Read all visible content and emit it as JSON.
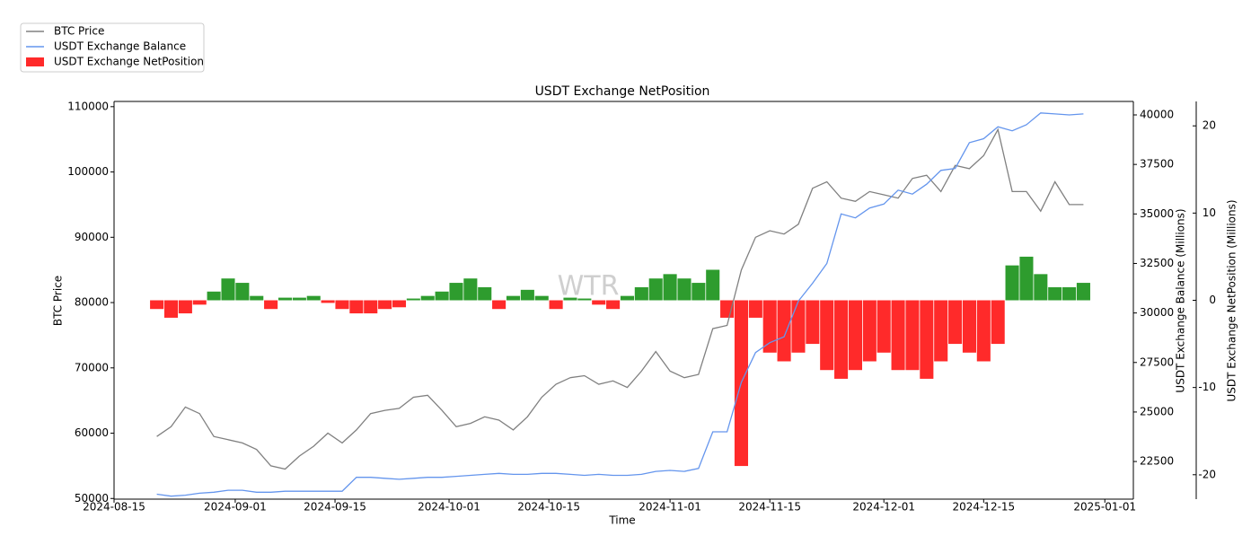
{
  "chart_data": {
    "type": "combo",
    "title": "USDT Exchange NetPosition",
    "watermark": "WTR",
    "xlabel": "Time",
    "ylabel": "BTC Price",
    "y2label": "USDT Exchange Balance (Millions)",
    "y3label": "USDT Exchange NetPosition (Millions)",
    "x": [
      "2024-08-21",
      "2024-08-23",
      "2024-08-25",
      "2024-08-27",
      "2024-08-29",
      "2024-08-31",
      "2024-09-02",
      "2024-09-04",
      "2024-09-06",
      "2024-09-08",
      "2024-09-10",
      "2024-09-12",
      "2024-09-14",
      "2024-09-16",
      "2024-09-18",
      "2024-09-20",
      "2024-09-22",
      "2024-09-24",
      "2024-09-26",
      "2024-09-28",
      "2024-09-30",
      "2024-10-02",
      "2024-10-04",
      "2024-10-06",
      "2024-10-08",
      "2024-10-10",
      "2024-10-12",
      "2024-10-14",
      "2024-10-16",
      "2024-10-18",
      "2024-10-20",
      "2024-10-22",
      "2024-10-24",
      "2024-10-26",
      "2024-10-28",
      "2024-10-30",
      "2024-11-01",
      "2024-11-03",
      "2024-11-05",
      "2024-11-07",
      "2024-11-09",
      "2024-11-11",
      "2024-11-13",
      "2024-11-15",
      "2024-11-17",
      "2024-11-19",
      "2024-11-21",
      "2024-11-23",
      "2024-11-25",
      "2024-11-27",
      "2024-11-29",
      "2024-12-01",
      "2024-12-03",
      "2024-12-05",
      "2024-12-07",
      "2024-12-09",
      "2024-12-11",
      "2024-12-13",
      "2024-12-15",
      "2024-12-17",
      "2024-12-19",
      "2024-12-21",
      "2024-12-23",
      "2024-12-25",
      "2024-12-27",
      "2024-12-29"
    ],
    "series": [
      {
        "name": "BTC Price",
        "type": "line",
        "axis": "y",
        "color": "#808080",
        "values": [
          59500,
          61000,
          64000,
          63000,
          59500,
          59000,
          58500,
          57500,
          55000,
          54500,
          56500,
          58000,
          60000,
          58500,
          60500,
          63000,
          63500,
          63800,
          65500,
          65800,
          63500,
          61000,
          61500,
          62500,
          62000,
          60500,
          62500,
          65500,
          67500,
          68500,
          68800,
          67500,
          68000,
          67000,
          69500,
          72500,
          69500,
          68500,
          69000,
          76000,
          76500,
          85000,
          90000,
          91000,
          90500,
          92000,
          97500,
          98500,
          96000,
          95500,
          97000,
          96500,
          96000,
          99000,
          99500,
          97000,
          101000,
          100500,
          102500,
          106500,
          97000,
          97000,
          94000,
          98500,
          95000,
          95000
        ]
      },
      {
        "name": "USDT Exchange Balance",
        "type": "line",
        "axis": "y2",
        "color": "#6495ed",
        "values": [
          20850,
          20750,
          20800,
          20900,
          20950,
          21050,
          21050,
          20950,
          20950,
          21000,
          21000,
          21000,
          21000,
          21000,
          21700,
          21700,
          21650,
          21600,
          21650,
          21700,
          21700,
          21750,
          21800,
          21850,
          21900,
          21850,
          21850,
          21900,
          21900,
          21850,
          21800,
          21850,
          21800,
          21800,
          21850,
          22000,
          22050,
          22000,
          22150,
          24000,
          24000,
          26500,
          28000,
          28500,
          28800,
          30600,
          31500,
          32500,
          35000,
          34800,
          35300,
          35500,
          36200,
          36000,
          36500,
          37200,
          37300,
          38600,
          38800,
          39400,
          39200,
          39500,
          40100,
          40050,
          40000,
          40050
        ]
      },
      {
        "name": "USDT Exchange NetPosition",
        "type": "bar",
        "axis": "y3",
        "color": "#ff2a2a",
        "positive_color": "#2e9c2e",
        "values": [
          -1,
          -2,
          -1.5,
          -0.5,
          1,
          2.5,
          2,
          0.5,
          -1,
          0.3,
          0.3,
          0.5,
          -0.3,
          -1,
          -1.5,
          -1.5,
          -1,
          -0.8,
          0.2,
          0.5,
          1,
          2,
          2.5,
          1.5,
          -1,
          0.5,
          1.2,
          0.5,
          -1,
          0.3,
          0.2,
          -0.5,
          -1,
          0.5,
          1.5,
          2.5,
          3,
          2.5,
          2,
          3.5,
          -2,
          -19,
          -2,
          -6,
          -7,
          -6,
          -5,
          -8,
          -9,
          -8,
          -7,
          -6,
          -8,
          -8,
          -9,
          -7,
          -5,
          -6,
          -7,
          -5,
          4,
          5,
          3,
          1.5,
          1.5,
          2
        ]
      }
    ],
    "xlim": [
      "2024-08-15",
      "2025-01-05"
    ],
    "xticks": [
      "2024-08-15",
      "2024-09-01",
      "2024-09-15",
      "2024-10-01",
      "2024-10-15",
      "2024-11-01",
      "2024-11-15",
      "2024-12-01",
      "2024-12-15",
      "2025-01-01"
    ],
    "ylim": [
      49900,
      110800
    ],
    "yticks": [
      50000,
      60000,
      70000,
      80000,
      90000,
      100000,
      110000
    ],
    "y2lim": [
      20600,
      40680
    ],
    "y2ticks": [
      22500,
      25000,
      27500,
      30000,
      32500,
      35000,
      37500,
      40000
    ],
    "y3lim": [
      -22.8,
      22.8
    ],
    "y3ticks": [
      -20,
      -10,
      0,
      10,
      20
    ],
    "legend": "upper-left"
  }
}
